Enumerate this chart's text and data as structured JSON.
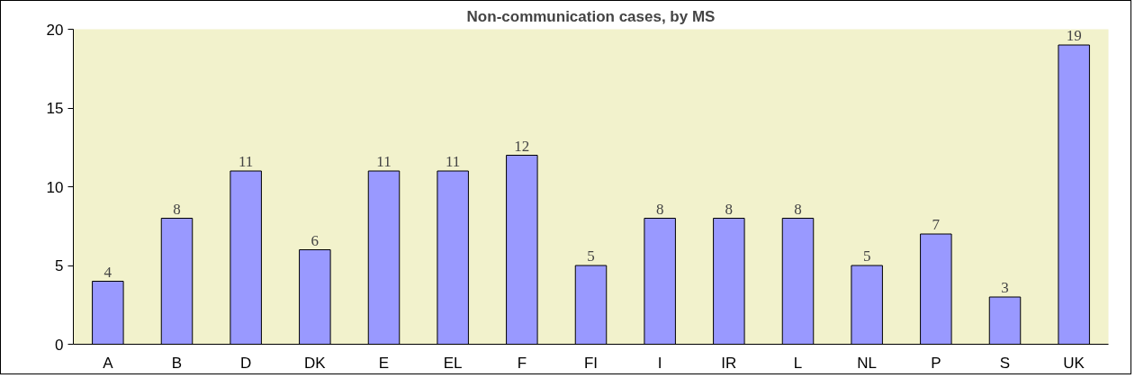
{
  "chart_data": {
    "type": "bar",
    "title": "Non-communication cases, by MS",
    "categories": [
      "A",
      "B",
      "D",
      "DK",
      "E",
      "EL",
      "F",
      "FI",
      "I",
      "IR",
      "L",
      "NL",
      "P",
      "S",
      "UK"
    ],
    "values": [
      4,
      8,
      11,
      6,
      11,
      11,
      12,
      5,
      8,
      8,
      8,
      5,
      7,
      3,
      19
    ],
    "color": "#9999ff",
    "ylim": [
      0,
      20
    ],
    "yticks": [
      0,
      5,
      10,
      15,
      20
    ],
    "grid": false,
    "data_labels": true
  }
}
